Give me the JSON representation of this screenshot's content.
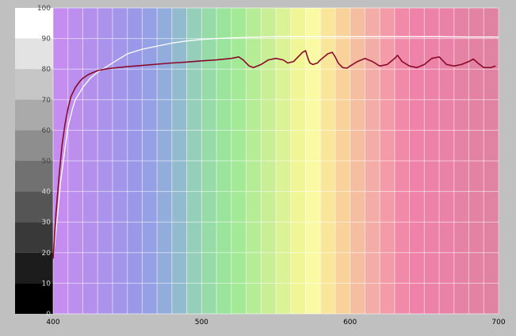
{
  "chart_data": {
    "type": "line",
    "title": "",
    "xlabel": "",
    "ylabel": "",
    "xlim": [
      400,
      700
    ],
    "ylim": [
      0,
      100
    ],
    "x_ticks": [
      400,
      500,
      600,
      700
    ],
    "y_ticks": [
      0,
      10,
      20,
      30,
      40,
      50,
      60,
      70,
      80,
      90,
      100
    ],
    "grid": true,
    "legend": "none",
    "background": "visible-spectrum color bands from violet (400) to red (700)",
    "grayscale_bar": "left-side reference bar with gray levels from black (0) to white (100)",
    "series": [
      {
        "color": "#ffffff",
        "x": [
          400,
          403,
          405,
          408,
          410,
          413,
          415,
          420,
          425,
          430,
          435,
          440,
          445,
          450,
          460,
          470,
          480,
          490,
          500,
          510,
          520,
          530,
          540,
          550,
          560,
          570,
          580,
          590,
          600,
          620,
          640,
          660,
          680,
          700
        ],
        "y": [
          18,
          32,
          43,
          54,
          61,
          67,
          70,
          74,
          77,
          79,
          80.5,
          82,
          83.5,
          85,
          86.5,
          87.5,
          88.5,
          89.2,
          89.7,
          90,
          90.2,
          90.4,
          90.5,
          90.6,
          90.6,
          90.6,
          90.6,
          90.6,
          90.6,
          90.6,
          90.6,
          90.6,
          90.5,
          90.5
        ]
      },
      {
        "color": "#8b0a2a",
        "x": [
          400,
          402,
          404,
          406,
          408,
          410,
          412,
          415,
          418,
          420,
          423,
          425,
          430,
          435,
          440,
          450,
          460,
          470,
          480,
          490,
          500,
          510,
          520,
          525,
          528,
          532,
          535,
          540,
          545,
          550,
          555,
          558,
          562,
          565,
          568,
          570,
          572,
          573,
          575,
          578,
          580,
          585,
          588,
          590,
          592,
          595,
          598,
          600,
          605,
          610,
          615,
          620,
          625,
          630,
          632,
          635,
          640,
          645,
          650,
          655,
          660,
          665,
          670,
          675,
          680,
          683,
          686,
          690,
          695,
          698
        ],
        "y": [
          18,
          33,
          45,
          55,
          62,
          67,
          71,
          74,
          76,
          77,
          78,
          78.5,
          79.5,
          80,
          80.3,
          80.8,
          81.2,
          81.6,
          82,
          82.3,
          82.7,
          83,
          83.5,
          84,
          83,
          81,
          80.5,
          81.5,
          83,
          83.5,
          83,
          82,
          82.5,
          84,
          85.5,
          86,
          83,
          82,
          81.5,
          82,
          83,
          85,
          85.5,
          84,
          82,
          80.5,
          80.3,
          81,
          82.5,
          83.5,
          82.5,
          81,
          81.5,
          83.5,
          84.5,
          82.5,
          81,
          80.5,
          81.5,
          83.5,
          84,
          81.5,
          81,
          81.5,
          82.5,
          83.3,
          82,
          80.5,
          80.5,
          81
        ]
      }
    ]
  }
}
